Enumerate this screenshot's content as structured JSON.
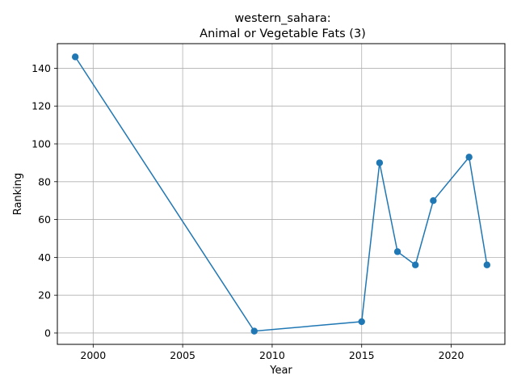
{
  "chart_data": {
    "type": "line",
    "title_line1": "western_sahara:",
    "title_line2": "Animal or Vegetable Fats (3)",
    "xlabel": "Year",
    "ylabel": "Ranking",
    "xlim": [
      1998,
      2023
    ],
    "ylim": [
      -6,
      153
    ],
    "xticks": [
      2000,
      2005,
      2010,
      2015,
      2020
    ],
    "yticks": [
      0,
      20,
      40,
      60,
      80,
      100,
      120,
      140
    ],
    "grid": true,
    "line_color": "#1f77b4",
    "series": [
      {
        "x": [
          1999,
          2009,
          2015,
          2016,
          2017,
          2018,
          2019,
          2021,
          2022
        ],
        "y": [
          146,
          1,
          6,
          90,
          43,
          36,
          70,
          93,
          36
        ]
      }
    ]
  }
}
